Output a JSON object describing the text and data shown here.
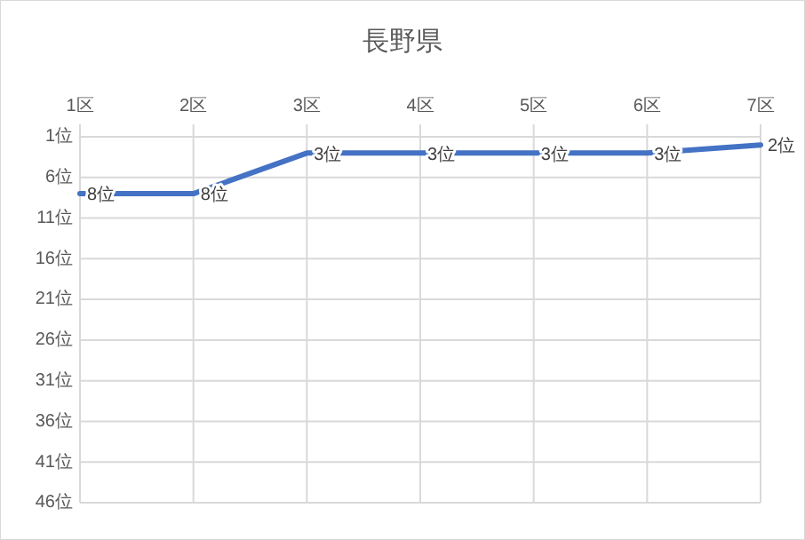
{
  "chart_data": {
    "type": "line",
    "title": "長野県",
    "categories": [
      "1区",
      "2区",
      "3区",
      "4区",
      "5区",
      "6区",
      "7区"
    ],
    "series": [
      {
        "color": "#4472c4",
        "values": [
          8,
          8,
          3,
          3,
          3,
          3,
          2
        ]
      }
    ],
    "value_labels": [
      "8位",
      "8位",
      "3位",
      "3位",
      "3位",
      "3位",
      "2位"
    ],
    "ylim": [
      46,
      1
    ],
    "yticks": [
      {
        "value": 1,
        "label": "1位"
      },
      {
        "value": 6,
        "label": "6位"
      },
      {
        "value": 11,
        "label": "11位"
      },
      {
        "value": 16,
        "label": "16位"
      },
      {
        "value": 21,
        "label": "21位"
      },
      {
        "value": 26,
        "label": "26位"
      },
      {
        "value": 31,
        "label": "31位"
      },
      {
        "value": 36,
        "label": "36位"
      },
      {
        "value": 41,
        "label": "41位"
      },
      {
        "value": 46,
        "label": "46位"
      }
    ],
    "grid": true,
    "marker": "none",
    "line_style": "solid"
  }
}
